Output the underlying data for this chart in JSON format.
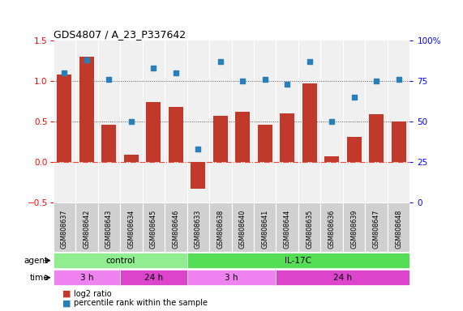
{
  "title": "GDS4807 / A_23_P337642",
  "samples": [
    "GSM808637",
    "GSM808642",
    "GSM808643",
    "GSM808634",
    "GSM808645",
    "GSM808646",
    "GSM808633",
    "GSM808638",
    "GSM808640",
    "GSM808641",
    "GSM808644",
    "GSM808635",
    "GSM808636",
    "GSM808639",
    "GSM808647",
    "GSM808648"
  ],
  "log2_ratio": [
    1.08,
    1.3,
    0.46,
    0.09,
    0.74,
    0.68,
    -0.33,
    0.57,
    0.62,
    0.46,
    0.6,
    0.97,
    0.07,
    0.31,
    0.59,
    0.5
  ],
  "percentile": [
    80,
    88,
    76,
    50,
    83,
    80,
    33,
    87,
    75,
    76,
    73,
    87,
    50,
    65,
    75,
    76
  ],
  "bar_color": "#c0392b",
  "dot_color": "#2980b9",
  "agent_groups": [
    {
      "label": "control",
      "start": 0,
      "end": 6,
      "color": "#90ee90"
    },
    {
      "label": "IL-17C",
      "start": 6,
      "end": 16,
      "color": "#55dd55"
    }
  ],
  "time_groups": [
    {
      "label": "3 h",
      "start": 0,
      "end": 3,
      "color": "#ee82ee"
    },
    {
      "label": "24 h",
      "start": 3,
      "end": 6,
      "color": "#dd44cc"
    },
    {
      "label": "3 h",
      "start": 6,
      "end": 10,
      "color": "#ee82ee"
    },
    {
      "label": "24 h",
      "start": 10,
      "end": 16,
      "color": "#dd44cc"
    }
  ],
  "ylim_left": [
    -0.5,
    1.5
  ],
  "ylim_right": [
    0,
    100
  ],
  "yticks_left": [
    -0.5,
    0.0,
    0.5,
    1.0,
    1.5
  ],
  "yticks_right": [
    0,
    25,
    50,
    75,
    100
  ],
  "hlines_dotted": [
    0.5,
    1.0
  ],
  "zero_line_color": "#e74c3c",
  "dot_line_color": "#555555",
  "bg_color": "#ffffff",
  "plot_bg_color": "#f0f0f0",
  "sample_box_color": "#d0d0d0"
}
